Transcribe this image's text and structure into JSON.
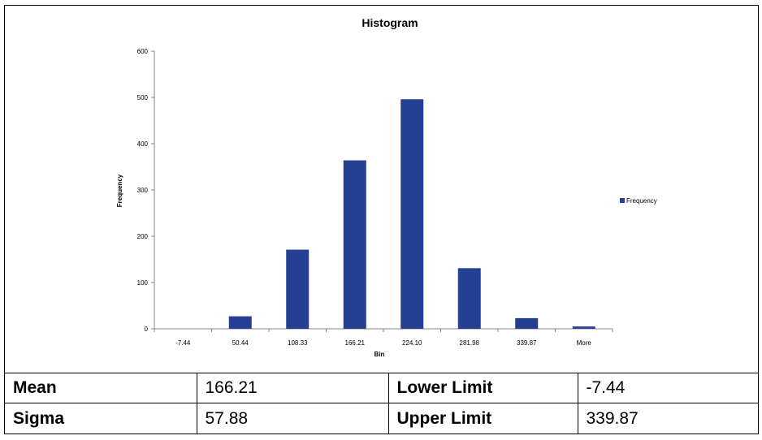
{
  "chart_data": {
    "type": "bar",
    "title": "Histogram",
    "xlabel": "Bin",
    "ylabel": "Frequency",
    "categories": [
      "-7.44",
      "50.44",
      "108.33",
      "166.21",
      "224.10",
      "281.98",
      "339.87",
      "More"
    ],
    "series": [
      {
        "name": "Frequency",
        "values": [
          0,
          27,
          171,
          364,
          496,
          131,
          23,
          5
        ],
        "color": "#253f92"
      }
    ],
    "ylim": [
      0,
      600
    ],
    "yticks": [
      "0",
      "100",
      "200",
      "300",
      "400",
      "500",
      "600"
    ],
    "grid": false,
    "legend_position": "right"
  },
  "stats": {
    "mean_label": "Mean",
    "mean_value": "166.21",
    "lower_label": "Lower Limit",
    "lower_value": "-7.44",
    "sigma_label": "Sigma",
    "sigma_value": "57.88",
    "upper_label": "Upper Limit",
    "upper_value": "339.87"
  }
}
